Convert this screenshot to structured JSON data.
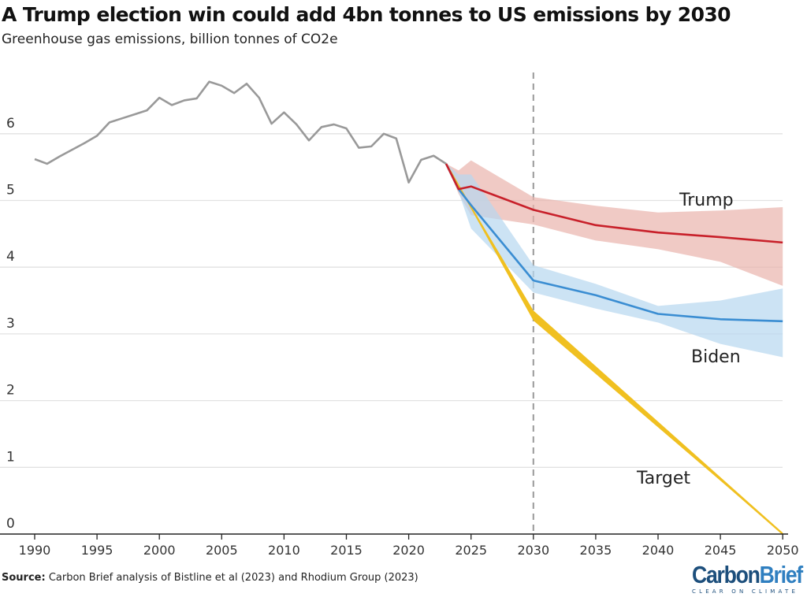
{
  "chart_data": {
    "type": "line",
    "title": "A Trump election win could add 4bn tonnes to US emissions by 2030",
    "subtitle": "Greenhouse gas emissions, billion tonnes of CO2e",
    "xlabel": "",
    "ylabel": "",
    "xlim": [
      1990,
      2050
    ],
    "ylim": [
      0,
      7
    ],
    "x_ticks": [
      1990,
      1995,
      2000,
      2005,
      2010,
      2015,
      2020,
      2025,
      2030,
      2035,
      2040,
      2045,
      2050
    ],
    "y_ticks": [
      0,
      1,
      2,
      3,
      4,
      5,
      6
    ],
    "grid": "horizontal",
    "reference_line": {
      "x": 2030,
      "style": "dashed"
    },
    "series": [
      {
        "key": "historical",
        "color": "#999999",
        "x": [
          1990,
          1991,
          1992,
          1993,
          1994,
          1995,
          1996,
          1997,
          1998,
          1999,
          2000,
          2001,
          2002,
          2003,
          2004,
          2005,
          2006,
          2007,
          2008,
          2009,
          2010,
          2011,
          2012,
          2013,
          2014,
          2015,
          2016,
          2017,
          2018,
          2019,
          2020,
          2021,
          2022,
          2023
        ],
        "y": [
          5.62,
          5.55,
          5.66,
          5.76,
          5.86,
          5.97,
          6.17,
          6.23,
          6.29,
          6.35,
          6.54,
          6.43,
          6.5,
          6.53,
          6.78,
          6.72,
          6.61,
          6.75,
          6.54,
          6.15,
          6.32,
          6.14,
          5.9,
          6.1,
          6.14,
          6.08,
          5.79,
          5.81,
          6.0,
          5.93,
          5.27,
          5.61,
          5.67,
          5.55
        ]
      },
      {
        "name": "Trump",
        "color": "#c8202a",
        "band_color": "#e9b3ad",
        "x": [
          2023,
          2024,
          2025,
          2030,
          2035,
          2040,
          2045,
          2050
        ],
        "y": [
          5.55,
          5.17,
          5.21,
          4.86,
          4.63,
          4.52,
          4.45,
          4.37
        ],
        "upper": [
          5.55,
          5.45,
          5.6,
          5.05,
          4.92,
          4.82,
          4.85,
          4.9
        ],
        "lower": [
          5.55,
          5.1,
          4.78,
          4.64,
          4.4,
          4.27,
          4.08,
          3.72
        ]
      },
      {
        "name": "Biden",
        "color": "#3a8dd2",
        "band_color": "#b6d7ef",
        "x": [
          2023,
          2024,
          2025,
          2030,
          2035,
          2040,
          2045,
          2050
        ],
        "y": [
          5.55,
          5.17,
          4.93,
          3.8,
          3.58,
          3.3,
          3.22,
          3.19
        ],
        "upper": [
          5.55,
          5.39,
          5.39,
          4.03,
          3.75,
          3.42,
          3.5,
          3.68
        ],
        "lower": [
          5.55,
          5.13,
          4.58,
          3.62,
          3.38,
          3.17,
          2.85,
          2.65
        ]
      },
      {
        "name": "Target",
        "color": "#f0c020",
        "band_color": "#f0c020",
        "x": [
          2023,
          2030,
          2050
        ],
        "y": [
          5.55,
          3.27,
          0.0
        ],
        "upper": [
          5.55,
          3.35,
          0.02
        ],
        "lower": [
          5.55,
          3.2,
          0.0
        ]
      }
    ],
    "source_label": "Source:",
    "source_text": "Carbon Brief analysis of Bistline et al (2023) and Rhodium Group (2023)",
    "logo": {
      "part1": "Carbon",
      "part2": "Brief",
      "tagline": "CLEAR ON CLIMATE"
    }
  }
}
